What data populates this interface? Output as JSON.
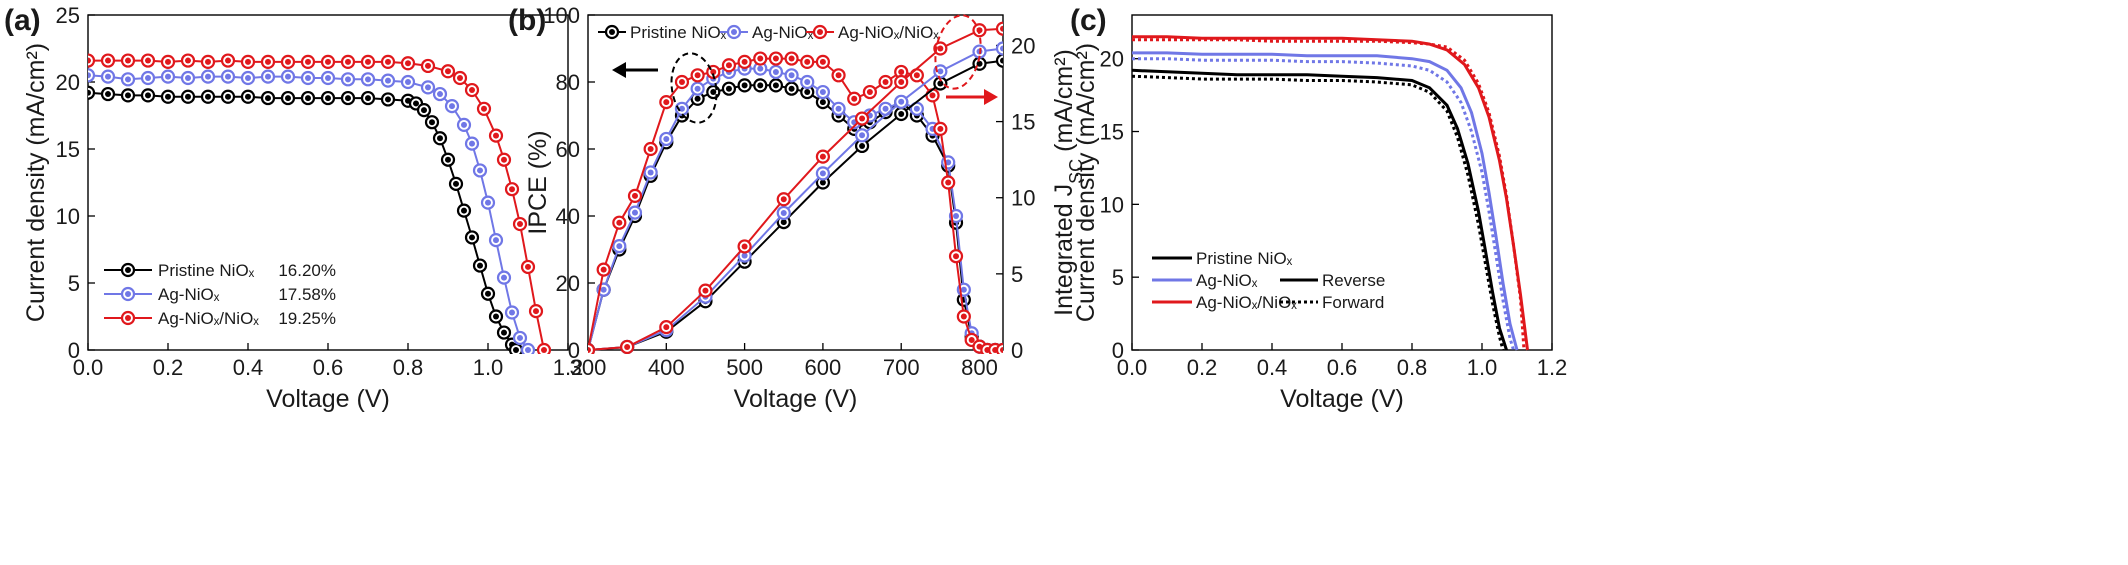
{
  "chart_data": [
    {
      "panel": "(a)",
      "type": "line",
      "xlabel": "Voltage (V)",
      "ylabel": "Current density (mA/cm²)",
      "xlim": [
        0,
        1.2
      ],
      "ylim": [
        0,
        25
      ],
      "xticks": [
        "0.0",
        "0.2",
        "0.4",
        "0.6",
        "0.8",
        "1.0",
        "1.2"
      ],
      "yticks": [
        "0",
        "5",
        "10",
        "15",
        "20",
        "25"
      ],
      "grid": false,
      "legend_position": "bottom-left",
      "series": [
        {
          "name": "Pristine NiOₓ",
          "efficiency": "16.20%",
          "color": "#000000",
          "x": [
            0,
            0.05,
            0.1,
            0.15,
            0.2,
            0.25,
            0.3,
            0.35,
            0.4,
            0.45,
            0.5,
            0.55,
            0.6,
            0.65,
            0.7,
            0.75,
            0.8,
            0.82,
            0.84,
            0.86,
            0.88,
            0.9,
            0.92,
            0.94,
            0.96,
            0.98,
            1.0,
            1.02,
            1.04,
            1.06,
            1.07
          ],
          "y": [
            19.2,
            19.1,
            19.0,
            19.0,
            18.9,
            18.9,
            18.9,
            18.9,
            18.9,
            18.8,
            18.8,
            18.8,
            18.8,
            18.8,
            18.8,
            18.7,
            18.6,
            18.4,
            17.9,
            17.0,
            15.8,
            14.2,
            12.4,
            10.4,
            8.4,
            6.3,
            4.2,
            2.5,
            1.3,
            0.4,
            0
          ]
        },
        {
          "name": "Ag-NiOₓ",
          "efficiency": "17.58%",
          "color": "#7077e6",
          "x": [
            0,
            0.05,
            0.1,
            0.15,
            0.2,
            0.25,
            0.3,
            0.35,
            0.4,
            0.45,
            0.5,
            0.55,
            0.6,
            0.65,
            0.7,
            0.75,
            0.8,
            0.85,
            0.88,
            0.91,
            0.94,
            0.96,
            0.98,
            1.0,
            1.02,
            1.04,
            1.06,
            1.08,
            1.1
          ],
          "y": [
            20.5,
            20.4,
            20.2,
            20.3,
            20.4,
            20.3,
            20.4,
            20.4,
            20.3,
            20.4,
            20.4,
            20.3,
            20.3,
            20.2,
            20.2,
            20.1,
            20.0,
            19.6,
            19.1,
            18.2,
            16.8,
            15.4,
            13.4,
            11.0,
            8.2,
            5.4,
            2.8,
            0.9,
            0
          ]
        },
        {
          "name": "Ag-NiOₓ/NiOₓ",
          "efficiency": "19.25%",
          "color": "#e0181c",
          "x": [
            0,
            0.05,
            0.1,
            0.15,
            0.2,
            0.25,
            0.3,
            0.35,
            0.4,
            0.45,
            0.5,
            0.55,
            0.6,
            0.65,
            0.7,
            0.75,
            0.8,
            0.85,
            0.9,
            0.93,
            0.96,
            0.99,
            1.02,
            1.04,
            1.06,
            1.08,
            1.1,
            1.12,
            1.14
          ],
          "y": [
            21.6,
            21.6,
            21.6,
            21.6,
            21.5,
            21.6,
            21.5,
            21.6,
            21.5,
            21.5,
            21.5,
            21.5,
            21.5,
            21.5,
            21.5,
            21.5,
            21.4,
            21.2,
            20.8,
            20.3,
            19.4,
            18.0,
            16.0,
            14.2,
            12.0,
            9.4,
            6.2,
            2.9,
            0
          ]
        }
      ]
    },
    {
      "panel": "(b)",
      "type": "line",
      "xlabel": "Voltage (V)",
      "ylabel": "IPCE (%)",
      "ylabel_right": "Integrated J_SC (mA/cm²)",
      "xlim": [
        300,
        830
      ],
      "ylim": [
        0,
        100
      ],
      "ylim_right": [
        0,
        22
      ],
      "xticks": [
        "300",
        "400",
        "500",
        "600",
        "700",
        "800"
      ],
      "yticks": [
        "0",
        "20",
        "40",
        "60",
        "80",
        "100"
      ],
      "yticks_right": [
        "0",
        "5",
        "10",
        "15",
        "20"
      ],
      "grid": false,
      "legend_position": "top",
      "series": [
        {
          "name": "Pristine NiOₓ",
          "color": "#000000",
          "axis": "left",
          "x": [
            300,
            320,
            340,
            360,
            380,
            400,
            420,
            440,
            460,
            480,
            500,
            520,
            540,
            560,
            580,
            600,
            620,
            640,
            660,
            680,
            700,
            720,
            740,
            760,
            770,
            780,
            790,
            800,
            810,
            820,
            830
          ],
          "y": [
            0,
            18,
            30,
            40,
            52,
            62,
            70,
            75,
            77,
            78,
            79,
            79,
            79,
            78,
            77,
            74,
            70,
            66,
            68,
            71,
            74,
            70,
            64,
            55,
            38,
            15,
            4,
            1,
            0,
            0,
            0
          ]
        },
        {
          "name": "Ag-NiOₓ",
          "color": "#7077e6",
          "axis": "left",
          "x": [
            300,
            320,
            340,
            360,
            380,
            400,
            420,
            440,
            460,
            480,
            500,
            520,
            540,
            560,
            580,
            600,
            620,
            640,
            660,
            680,
            700,
            720,
            740,
            760,
            770,
            780,
            790,
            800,
            810,
            820,
            830
          ],
          "y": [
            0,
            18,
            31,
            41,
            53,
            63,
            72,
            78,
            81,
            83,
            84,
            84,
            83,
            82,
            80,
            77,
            72,
            68,
            70,
            72,
            74,
            72,
            66,
            56,
            40,
            18,
            5,
            1,
            0,
            0,
            0
          ]
        },
        {
          "name": "Ag-NiOₓ/NiOₓ",
          "color": "#e0181c",
          "axis": "left",
          "x": [
            300,
            320,
            340,
            360,
            380,
            400,
            420,
            440,
            460,
            480,
            500,
            520,
            540,
            560,
            580,
            600,
            620,
            640,
            660,
            680,
            700,
            720,
            740,
            750,
            760,
            770,
            780,
            790,
            800,
            810,
            820,
            830
          ],
          "y": [
            0,
            24,
            38,
            46,
            60,
            74,
            80,
            82,
            83,
            85,
            86,
            87,
            87,
            87,
            86,
            86,
            82,
            75,
            77,
            80,
            83,
            82,
            76,
            66,
            50,
            28,
            10,
            3,
            1,
            0,
            0,
            0
          ]
        },
        {
          "name": "Pristine NiOₓ",
          "color": "#000000",
          "axis": "right",
          "x": [
            300,
            350,
            400,
            450,
            500,
            550,
            600,
            650,
            700,
            750,
            800,
            830
          ],
          "y": [
            0,
            0.2,
            1.2,
            3.2,
            5.8,
            8.4,
            11.0,
            13.4,
            15.5,
            17.5,
            18.8,
            19.0
          ]
        },
        {
          "name": "Ag-NiOₓ",
          "color": "#7077e6",
          "axis": "right",
          "x": [
            300,
            350,
            400,
            450,
            500,
            550,
            600,
            650,
            700,
            750,
            800,
            830
          ],
          "y": [
            0,
            0.2,
            1.3,
            3.5,
            6.2,
            9.0,
            11.6,
            14.1,
            16.3,
            18.3,
            19.6,
            19.8
          ]
        },
        {
          "name": "Ag-NiOₓ/NiOₓ",
          "color": "#e0181c",
          "axis": "right",
          "x": [
            300,
            350,
            400,
            450,
            500,
            550,
            600,
            650,
            700,
            750,
            800,
            830
          ],
          "y": [
            0,
            0.2,
            1.5,
            3.9,
            6.8,
            9.9,
            12.7,
            15.2,
            17.6,
            19.8,
            21.0,
            21.1
          ]
        }
      ]
    },
    {
      "panel": "(c)",
      "type": "line",
      "xlabel": "Voltage (V)",
      "ylabel": "Current density (mA/cm²)",
      "xlim": [
        0,
        1.2
      ],
      "ylim": [
        0,
        23
      ],
      "xticks": [
        "0.0",
        "0.2",
        "0.4",
        "0.6",
        "0.8",
        "1.0",
        "1.2"
      ],
      "yticks": [
        "0",
        "5",
        "10",
        "15",
        "20"
      ],
      "grid": false,
      "legend_position": "bottom-left",
      "scan_legend": [
        "Reverse",
        "Forward"
      ],
      "series": [
        {
          "name": "Pristine NiOₓ",
          "color": "#000000",
          "scan": "Reverse",
          "x": [
            0,
            0.1,
            0.2,
            0.3,
            0.4,
            0.5,
            0.6,
            0.7,
            0.8,
            0.85,
            0.9,
            0.93,
            0.96,
            0.99,
            1.01,
            1.03,
            1.05,
            1.07
          ],
          "y": [
            19.2,
            19.1,
            19.0,
            18.9,
            18.9,
            18.9,
            18.8,
            18.7,
            18.5,
            18.0,
            16.8,
            15.2,
            12.8,
            9.5,
            6.8,
            4.0,
            1.5,
            0
          ]
        },
        {
          "name": "Pristine NiOₓ",
          "color": "#000000",
          "scan": "Forward",
          "x": [
            0,
            0.1,
            0.2,
            0.3,
            0.4,
            0.5,
            0.6,
            0.7,
            0.8,
            0.85,
            0.9,
            0.93,
            0.96,
            0.99,
            1.01,
            1.03,
            1.05,
            1.06
          ],
          "y": [
            18.8,
            18.7,
            18.6,
            18.6,
            18.6,
            18.5,
            18.5,
            18.4,
            18.2,
            17.7,
            16.4,
            14.6,
            12.0,
            8.6,
            5.9,
            3.2,
            0.9,
            0
          ]
        },
        {
          "name": "Ag-NiOₓ",
          "color": "#7077e6",
          "scan": "Reverse",
          "x": [
            0,
            0.1,
            0.2,
            0.3,
            0.4,
            0.5,
            0.6,
            0.7,
            0.8,
            0.85,
            0.9,
            0.94,
            0.97,
            1.0,
            1.02,
            1.04,
            1.06,
            1.08,
            1.1
          ],
          "y": [
            20.4,
            20.4,
            20.3,
            20.3,
            20.3,
            20.2,
            20.2,
            20.2,
            20.0,
            19.8,
            19.2,
            18.0,
            16.3,
            13.5,
            10.8,
            7.8,
            4.6,
            1.8,
            0
          ]
        },
        {
          "name": "Ag-NiOₓ",
          "color": "#7077e6",
          "scan": "Forward",
          "x": [
            0,
            0.1,
            0.2,
            0.3,
            0.4,
            0.5,
            0.6,
            0.7,
            0.8,
            0.85,
            0.9,
            0.94,
            0.97,
            1.0,
            1.02,
            1.04,
            1.06,
            1.08,
            1.09
          ],
          "y": [
            20.0,
            20.0,
            19.9,
            19.9,
            19.9,
            19.8,
            19.8,
            19.7,
            19.5,
            19.2,
            18.4,
            17.0,
            15.0,
            12.2,
            9.5,
            6.5,
            3.4,
            0.8,
            0
          ]
        },
        {
          "name": "Ag-NiOₓ/NiOₓ",
          "color": "#e0181c",
          "scan": "Reverse",
          "x": [
            0,
            0.1,
            0.2,
            0.3,
            0.4,
            0.5,
            0.6,
            0.7,
            0.8,
            0.85,
            0.9,
            0.95,
            0.99,
            1.02,
            1.05,
            1.07,
            1.09,
            1.11,
            1.13
          ],
          "y": [
            21.5,
            21.5,
            21.4,
            21.4,
            21.4,
            21.4,
            21.4,
            21.3,
            21.2,
            21.0,
            20.6,
            19.6,
            18.0,
            16.0,
            13.0,
            10.4,
            7.2,
            3.8,
            0
          ]
        },
        {
          "name": "Ag-NiOₓ/NiOₓ",
          "color": "#e0181c",
          "scan": "Forward",
          "x": [
            0,
            0.1,
            0.2,
            0.3,
            0.4,
            0.5,
            0.6,
            0.7,
            0.8,
            0.85,
            0.9,
            0.95,
            0.99,
            1.02,
            1.05,
            1.07,
            1.09,
            1.11,
            1.12
          ],
          "y": [
            21.3,
            21.3,
            21.3,
            21.3,
            21.2,
            21.2,
            21.2,
            21.2,
            21.1,
            21.0,
            20.8,
            19.9,
            18.3,
            16.3,
            13.3,
            10.6,
            7.2,
            3.5,
            0
          ]
        }
      ]
    }
  ]
}
